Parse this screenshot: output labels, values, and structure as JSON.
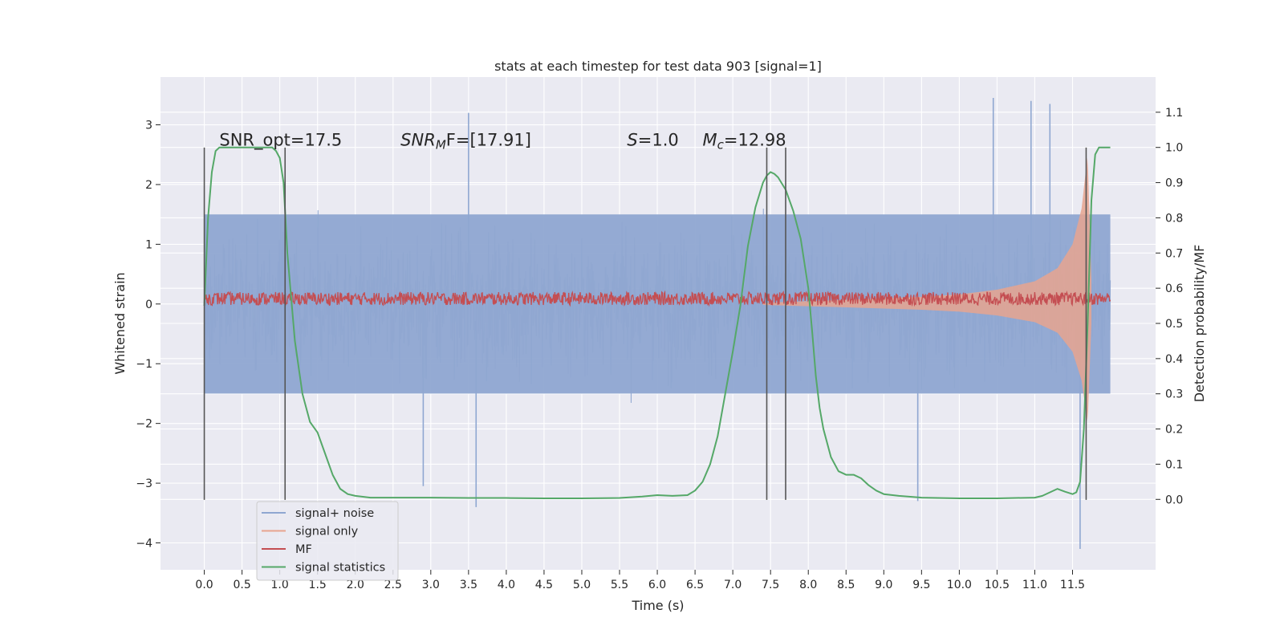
{
  "chart_data": {
    "type": "line",
    "title": "stats at each timestep for test data 903 [signal=1]",
    "xlabel": "Time (s)",
    "ylabel": "Whitened strain",
    "ylabel_right": "Detection probability/MF",
    "xlim": [
      -0.58,
      12.6
    ],
    "ylim": [
      -4.45,
      3.8
    ],
    "ylim_right": [
      -0.2,
      1.2
    ],
    "xticks": [
      0.0,
      0.5,
      1.0,
      1.5,
      2.0,
      2.5,
      3.0,
      3.5,
      4.0,
      4.5,
      5.0,
      5.5,
      6.0,
      6.5,
      7.0,
      7.5,
      8.0,
      8.5,
      9.0,
      9.5,
      10.0,
      10.5,
      11.0,
      11.5
    ],
    "xtick_labels": [
      "0.0",
      "0.5",
      "1.0",
      "1.5",
      "2.0",
      "2.5",
      "3.0",
      "3.5",
      "4.0",
      "4.5",
      "5.0",
      "5.5",
      "6.0",
      "6.5",
      "7.0",
      "7.5",
      "8.0",
      "8.5",
      "9.0",
      "9.5",
      "10.0",
      "10.5",
      "11.0",
      "11.5"
    ],
    "yticks": [
      -4,
      -3,
      -2,
      -1,
      0,
      1,
      2,
      3
    ],
    "ytick_labels": [
      "−4",
      "−3",
      "−2",
      "−1",
      "0",
      "1",
      "2",
      "3"
    ],
    "yticks_right": [
      0.0,
      0.1,
      0.2,
      0.3,
      0.4,
      0.5,
      0.6,
      0.7,
      0.8,
      0.9,
      1.0,
      1.1
    ],
    "ytick_labels_right": [
      "0.0",
      "0.1",
      "0.2",
      "0.3",
      "0.4",
      "0.5",
      "0.6",
      "0.7",
      "0.8",
      "0.9",
      "1.0",
      "1.1"
    ],
    "grid": true,
    "legend_position": "lower-left",
    "series": [
      {
        "name": "signal+ noise",
        "color": "#8fa7d1",
        "axis": "left",
        "style": "noise",
        "x_range": [
          0.0,
          12.0
        ],
        "amplitude_band": [
          -1.5,
          1.5
        ],
        "peak_range": [
          -4.1,
          3.45
        ],
        "peaks": [
          [
            3.5,
            3.2
          ],
          [
            3.6,
            -3.4
          ],
          [
            10.45,
            3.45
          ],
          [
            10.95,
            3.4
          ],
          [
            11.2,
            3.35
          ],
          [
            11.6,
            -4.1
          ],
          [
            9.45,
            -3.3
          ],
          [
            2.9,
            -3.05
          ]
        ]
      },
      {
        "name": "signal only",
        "color": "#e8a48f",
        "axis": "left",
        "style": "chirp",
        "x_range": [
          7.4,
          11.75
        ],
        "envelope": [
          [
            7.4,
            0.02
          ],
          [
            8.5,
            0.07
          ],
          [
            9.5,
            0.12
          ],
          [
            10.0,
            0.16
          ],
          [
            10.5,
            0.24
          ],
          [
            11.0,
            0.38
          ],
          [
            11.3,
            0.6
          ],
          [
            11.5,
            1.0
          ],
          [
            11.62,
            1.6
          ],
          [
            11.7,
            2.5
          ],
          [
            11.75,
            0.4
          ]
        ]
      },
      {
        "name": "MF",
        "color": "#c44e52",
        "axis": "left",
        "style": "band",
        "x_range": [
          0.0,
          12.0
        ],
        "band": [
          -0.02,
          0.2
        ]
      },
      {
        "name": "signal statistics",
        "color": "#55a868",
        "axis": "right",
        "style": "line",
        "x": [
          0.0,
          0.05,
          0.1,
          0.15,
          0.2,
          0.3,
          0.5,
          0.8,
          0.9,
          0.95,
          1.0,
          1.05,
          1.1,
          1.2,
          1.3,
          1.4,
          1.5,
          1.6,
          1.7,
          1.8,
          1.9,
          2.0,
          2.2,
          2.5,
          3.0,
          3.5,
          4.0,
          4.5,
          5.0,
          5.5,
          5.8,
          6.0,
          6.2,
          6.4,
          6.5,
          6.6,
          6.7,
          6.8,
          6.9,
          7.0,
          7.1,
          7.2,
          7.3,
          7.4,
          7.45,
          7.5,
          7.55,
          7.6,
          7.7,
          7.8,
          7.9,
          8.0,
          8.05,
          8.1,
          8.15,
          8.2,
          8.3,
          8.4,
          8.5,
          8.6,
          8.7,
          8.8,
          8.9,
          9.0,
          9.2,
          9.5,
          10.0,
          10.5,
          11.0,
          11.1,
          11.2,
          11.3,
          11.4,
          11.5,
          11.55,
          11.6,
          11.65,
          11.7,
          11.75,
          11.8,
          11.85,
          11.9,
          11.95,
          12.0
        ],
        "y": [
          0.55,
          0.8,
          0.93,
          0.99,
          1.0,
          1.0,
          1.0,
          1.0,
          1.0,
          0.99,
          0.97,
          0.9,
          0.7,
          0.45,
          0.3,
          0.22,
          0.19,
          0.13,
          0.07,
          0.03,
          0.015,
          0.01,
          0.005,
          0.005,
          0.005,
          0.004,
          0.004,
          0.003,
          0.003,
          0.004,
          0.008,
          0.012,
          0.01,
          0.012,
          0.025,
          0.05,
          0.1,
          0.18,
          0.3,
          0.42,
          0.55,
          0.72,
          0.83,
          0.9,
          0.92,
          0.93,
          0.925,
          0.915,
          0.88,
          0.82,
          0.74,
          0.6,
          0.48,
          0.35,
          0.26,
          0.2,
          0.12,
          0.08,
          0.07,
          0.07,
          0.06,
          0.04,
          0.025,
          0.015,
          0.01,
          0.005,
          0.003,
          0.003,
          0.005,
          0.01,
          0.02,
          0.03,
          0.022,
          0.015,
          0.02,
          0.05,
          0.2,
          0.5,
          0.85,
          0.98,
          1.0,
          1.0,
          1.0,
          1.0
        ]
      }
    ],
    "vlines": [
      0.0,
      1.07,
      7.45,
      7.7,
      11.68
    ],
    "vline_range": [
      -3.28,
      2.62
    ],
    "annotations": [
      {
        "x": 0.2,
        "y": 2.65,
        "prefix": "SNR_opt=17.5",
        "sub": "",
        "suffix": ""
      },
      {
        "x": 2.6,
        "y": 2.65,
        "prefix": "SNR",
        "sub": "M",
        "suffix": "F=[17.91]",
        "italic": true
      },
      {
        "x": 5.6,
        "y": 2.65,
        "prefix": "S",
        "sub": "",
        "suffix": "=1.0",
        "italic": true
      },
      {
        "x": 6.6,
        "y": 2.65,
        "prefix": "M",
        "sub": "c",
        "suffix": "=12.98",
        "italic": true
      }
    ]
  }
}
